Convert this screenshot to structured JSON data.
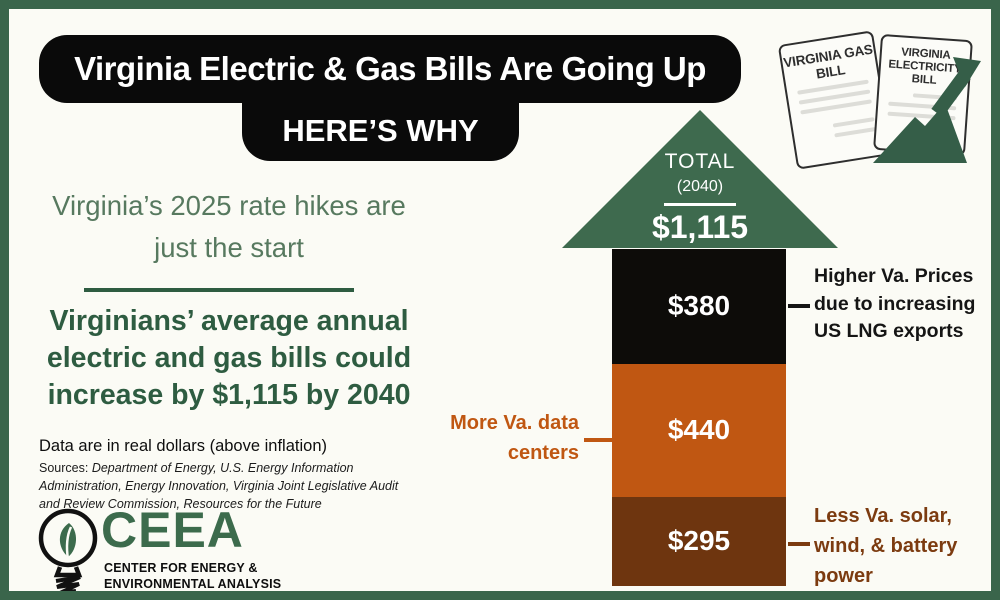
{
  "header": {
    "title": "Virginia Electric & Gas Bills Are Going Up",
    "subtitle": "HERE’S WHY"
  },
  "bills_illustration": {
    "gas_bill_label": "VIRGINIA GAS BILL",
    "electricity_bill_label": "VIRGINIA ELECTRICITY BILL",
    "icons": [
      "gas-bill-document-icon",
      "electricity-bill-document-icon",
      "rising-arrow-icon"
    ]
  },
  "left_panel": {
    "intro": "Virginia’s 2025 rate hikes are just the start",
    "headline": "Virginians’ average annual electric and gas bills could increase by $1,115 by 2040",
    "note": "Data are in real dollars (above inflation)",
    "sources_prefix": "Sources: ",
    "sources_text": "Department of Energy, U.S. Energy Information Administration, Energy Innovation, Virginia Joint Legislative Audit and Review Commission, Resources for the Future"
  },
  "logo": {
    "icon": "lightbulb-leaf-icon",
    "acronym": "CEEA",
    "name_line1": "CENTER FOR ENERGY &",
    "name_line2": "ENVIRONMENTAL ANALYSIS"
  },
  "chart_data": {
    "type": "bar",
    "stacked": true,
    "orientation": "single-stacked-column",
    "title": "TOTAL",
    "total": {
      "label": "TOTAL",
      "year": "(2040)",
      "value": 1115,
      "display": "$1,115"
    },
    "categories": [
      "Higher Va. Prices due to increasing US LNG exports",
      "More Va. data centers",
      "Less Va. solar, wind, & battery power"
    ],
    "segments": [
      {
        "name": "Higher Va. Prices due to increasing US LNG exports",
        "value": 380,
        "display": "$380",
        "color": "#0d0c09",
        "label_color": "#151515",
        "label_side": "right"
      },
      {
        "name": "More Va. data centers",
        "value": 440,
        "display": "$440",
        "color": "#c05712",
        "label_color": "#c05712",
        "label_side": "left"
      },
      {
        "name": "Less Va. solar, wind, & battery power",
        "value": 295,
        "display": "$295",
        "color": "#6e350f",
        "label_color": "#7c3b10",
        "label_side": "right"
      }
    ],
    "legend_position": "callout-labels",
    "grid": false
  },
  "colors": {
    "page_border": "#3a654b",
    "background": "#fbfbf5",
    "banner": "#0a0a0a",
    "intro_green": "#57795f",
    "headline_green": "#2e5c41",
    "triangle_green": "#3e6a4e",
    "arrow_green": "#355e48",
    "logo_green": "#3c6b4c"
  }
}
